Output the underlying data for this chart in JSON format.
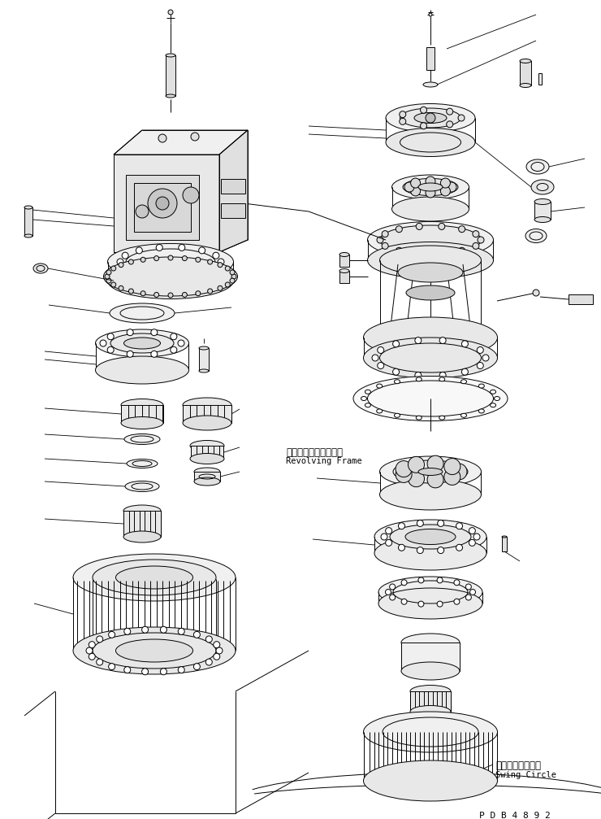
{
  "background_color": "#ffffff",
  "line_color": "#000000",
  "label_revolving_frame_jp": "レボルビングフレーム",
  "label_revolving_frame_en": "Revolving Frame",
  "label_swing_circle_jp": "スイングサークル",
  "label_swing_circle_en": "Swing Circle",
  "label_pdb": "P D B 4 8 9 2",
  "figsize": [
    7.4,
    10.07
  ],
  "dpi": 100
}
